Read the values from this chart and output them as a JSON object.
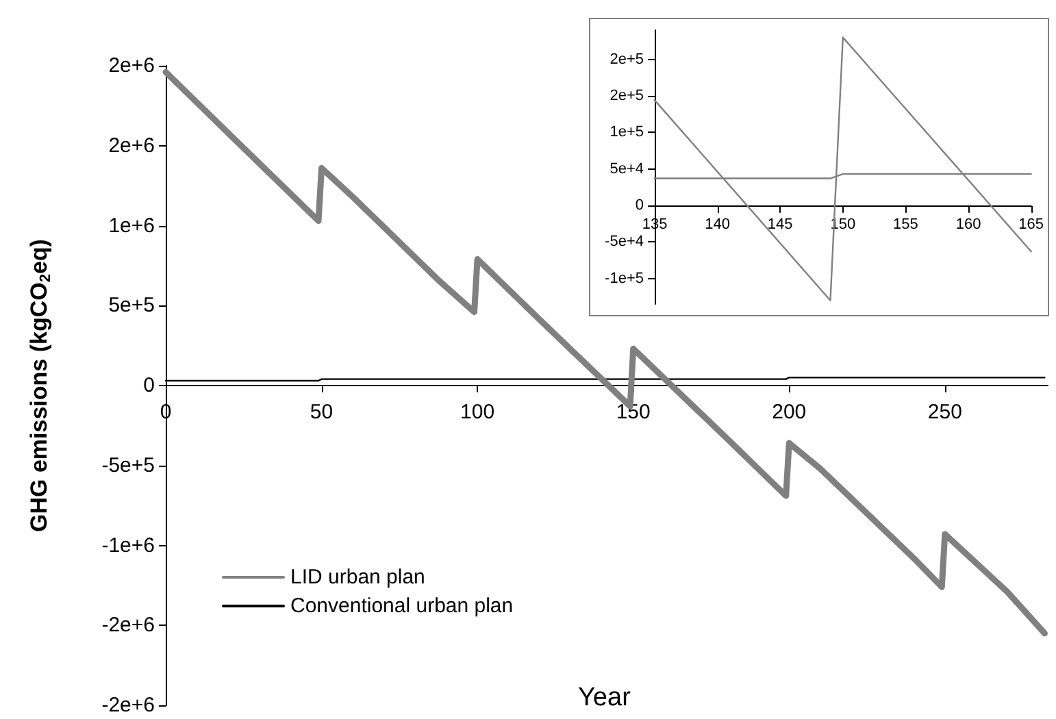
{
  "chart_data": [
    {
      "type": "line",
      "xlabel": "Year",
      "ylabel": "GHG emissions (kgCO$_{2}$eq)",
      "xlim": [
        0,
        283
      ],
      "ylim": [
        -2000000,
        2000000
      ],
      "xticks": [
        0,
        50,
        100,
        150,
        200,
        250
      ],
      "yticks": [
        {
          "value": -2000000,
          "label": "-2e+6"
        },
        {
          "value": -1500000,
          "label": "-2e+6"
        },
        {
          "value": -1000000,
          "label": "-1e+6"
        },
        {
          "value": -500000,
          "label": "-5e+5"
        },
        0,
        {
          "value": 500000,
          "label": "5e+5"
        },
        {
          "value": 1000000,
          "label": "1e+6"
        },
        {
          "value": 1500000,
          "label": "2e+6"
        },
        {
          "value": 2000000,
          "label": "2e+6"
        }
      ],
      "grid": false,
      "legend": "bottom left",
      "marker": "none",
      "line_style": "solid",
      "series": [
        {
          "name": "LID urban plan",
          "color": "#808080",
          "x": [
            0,
            30,
            49,
            50,
            60,
            88,
            99,
            100,
            119,
            149,
            150,
            180,
            199,
            200,
            210,
            240,
            249,
            250,
            270,
            282
          ],
          "values": [
            1960000,
            1390000,
            1030000,
            1360000,
            1180000,
            650000,
            460000,
            790000,
            430000,
            -130000,
            230000,
            -330000,
            -690000,
            -360000,
            -520000,
            -1080000,
            -1260000,
            -930000,
            -1290000,
            -1550000
          ]
        },
        {
          "name": "Conventional urban plan",
          "color": "#000000",
          "x": [
            0,
            49,
            50,
            199,
            200,
            282
          ],
          "values": [
            30000,
            30000,
            40000,
            40000,
            50000,
            50000
          ]
        }
      ]
    },
    {
      "type": "line",
      "xlim": [
        135,
        165
      ],
      "ylim": [
        -135000,
        240000
      ],
      "xticks": [
        135,
        140,
        145,
        150,
        155,
        160,
        165
      ],
      "yticks": [
        {
          "value": -100000,
          "label": "-1e+5"
        },
        {
          "value": -50000,
          "label": "-5e+4"
        },
        0,
        {
          "value": 50000,
          "label": "5e+4"
        },
        {
          "value": 100000,
          "label": "1e+5"
        },
        {
          "value": 150000,
          "label": "2e+5"
        },
        {
          "value": 200000,
          "label": "2e+5"
        }
      ],
      "grid": false,
      "marker": "none",
      "line_style": "solid",
      "series": [
        {
          "color": "#808080",
          "x": [
            135,
            149,
            150,
            165
          ],
          "values": [
            144000,
            -130000,
            230000,
            -63000
          ]
        },
        {
          "color": "#808080",
          "x": [
            135,
            149,
            150,
            165
          ],
          "values": [
            37000,
            37000,
            43000,
            43000
          ]
        }
      ]
    }
  ]
}
